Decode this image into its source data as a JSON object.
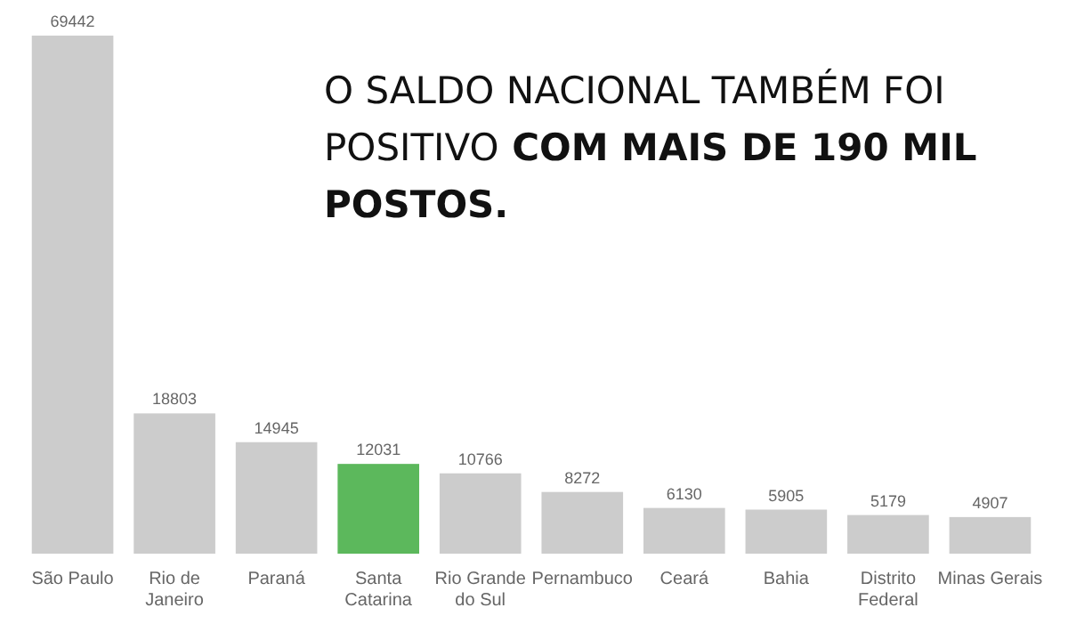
{
  "chart_data": {
    "type": "bar",
    "title": "O SALDO NACIONAL TAMBÉM FOI POSITIVO",
    "subtitle": "COM MAIS DE 190 MIL POSTOS.",
    "categories": [
      "São Paulo",
      "Rio de Janeiro",
      "Paraná",
      "Santa Catarina",
      "Rio Grande do Sul",
      "Pernambuco",
      "Ceará",
      "Bahia",
      "Distrito Federal",
      "Minas Gerais"
    ],
    "values": [
      69442,
      18803,
      14945,
      12031,
      10766,
      8272,
      6130,
      5905,
      5179,
      4907
    ],
    "colors": [
      "#cccccc",
      "#cccccc",
      "#cccccc",
      "#5cb85c",
      "#cccccc",
      "#cccccc",
      "#cccccc",
      "#cccccc",
      "#cccccc",
      "#cccccc"
    ],
    "data_labels": true
  }
}
